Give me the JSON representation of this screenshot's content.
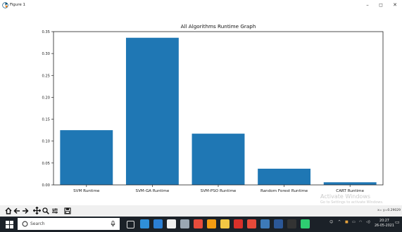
{
  "window": {
    "title": "Figure 1",
    "controls": {
      "minimize": "–",
      "maximize": "◻",
      "close": "✕"
    }
  },
  "chart_data": {
    "type": "bar",
    "title": "All Algorithms Runtime Graph",
    "xlabel": "",
    "ylabel": "",
    "categories": [
      "SVM Runtime",
      "SVM-GA Runtime",
      "SVM-PSO Runtime",
      "Random Forest Runtime",
      "CART Runtime"
    ],
    "values": [
      0.125,
      0.336,
      0.117,
      0.037,
      0.006
    ],
    "ylim": [
      0,
      0.35
    ],
    "yticks": [
      0.0,
      0.05,
      0.1,
      0.15,
      0.2,
      0.25,
      0.3,
      0.35
    ],
    "ytick_labels": [
      "0.00",
      "0.05",
      "0.10",
      "0.15",
      "0.20",
      "0.25",
      "0.30",
      "0.35"
    ],
    "bar_color": "#1f77b4",
    "grid": false,
    "legend": "none"
  },
  "watermark": {
    "line1": "Activate Windows",
    "line2": "Go to Settings to activate Windows."
  },
  "toolbar": {
    "buttons": [
      "home-icon",
      "back-icon",
      "forward-icon",
      "pan-icon",
      "zoom-icon",
      "configure-icon",
      "save-icon"
    ],
    "coordinates": "x= y=0.29029"
  },
  "taskbar": {
    "search_placeholder": "Search",
    "time": "20:27",
    "date": "26-05-2021",
    "apps": [
      {
        "name": "task-view",
        "color": "#ffffff"
      },
      {
        "name": "edge",
        "color": "#2f8fd8"
      },
      {
        "name": "mail",
        "color": "#2b7fd4"
      },
      {
        "name": "store",
        "color": "#f0f0f0"
      },
      {
        "name": "settings",
        "color": "#9aa7b3"
      },
      {
        "name": "chrome",
        "color": "#e74c3c"
      },
      {
        "name": "firefox",
        "color": "#f39c12"
      },
      {
        "name": "files",
        "color": "#f2c744"
      },
      {
        "name": "acrobat",
        "color": "#d9302a"
      },
      {
        "name": "tools",
        "color": "#e64a3a"
      },
      {
        "name": "python",
        "color": "#3d7ab8"
      },
      {
        "name": "word",
        "color": "#2b5797"
      },
      {
        "name": "terminal",
        "color": "#333333"
      },
      {
        "name": "network",
        "color": "#2ecc71"
      }
    ]
  }
}
